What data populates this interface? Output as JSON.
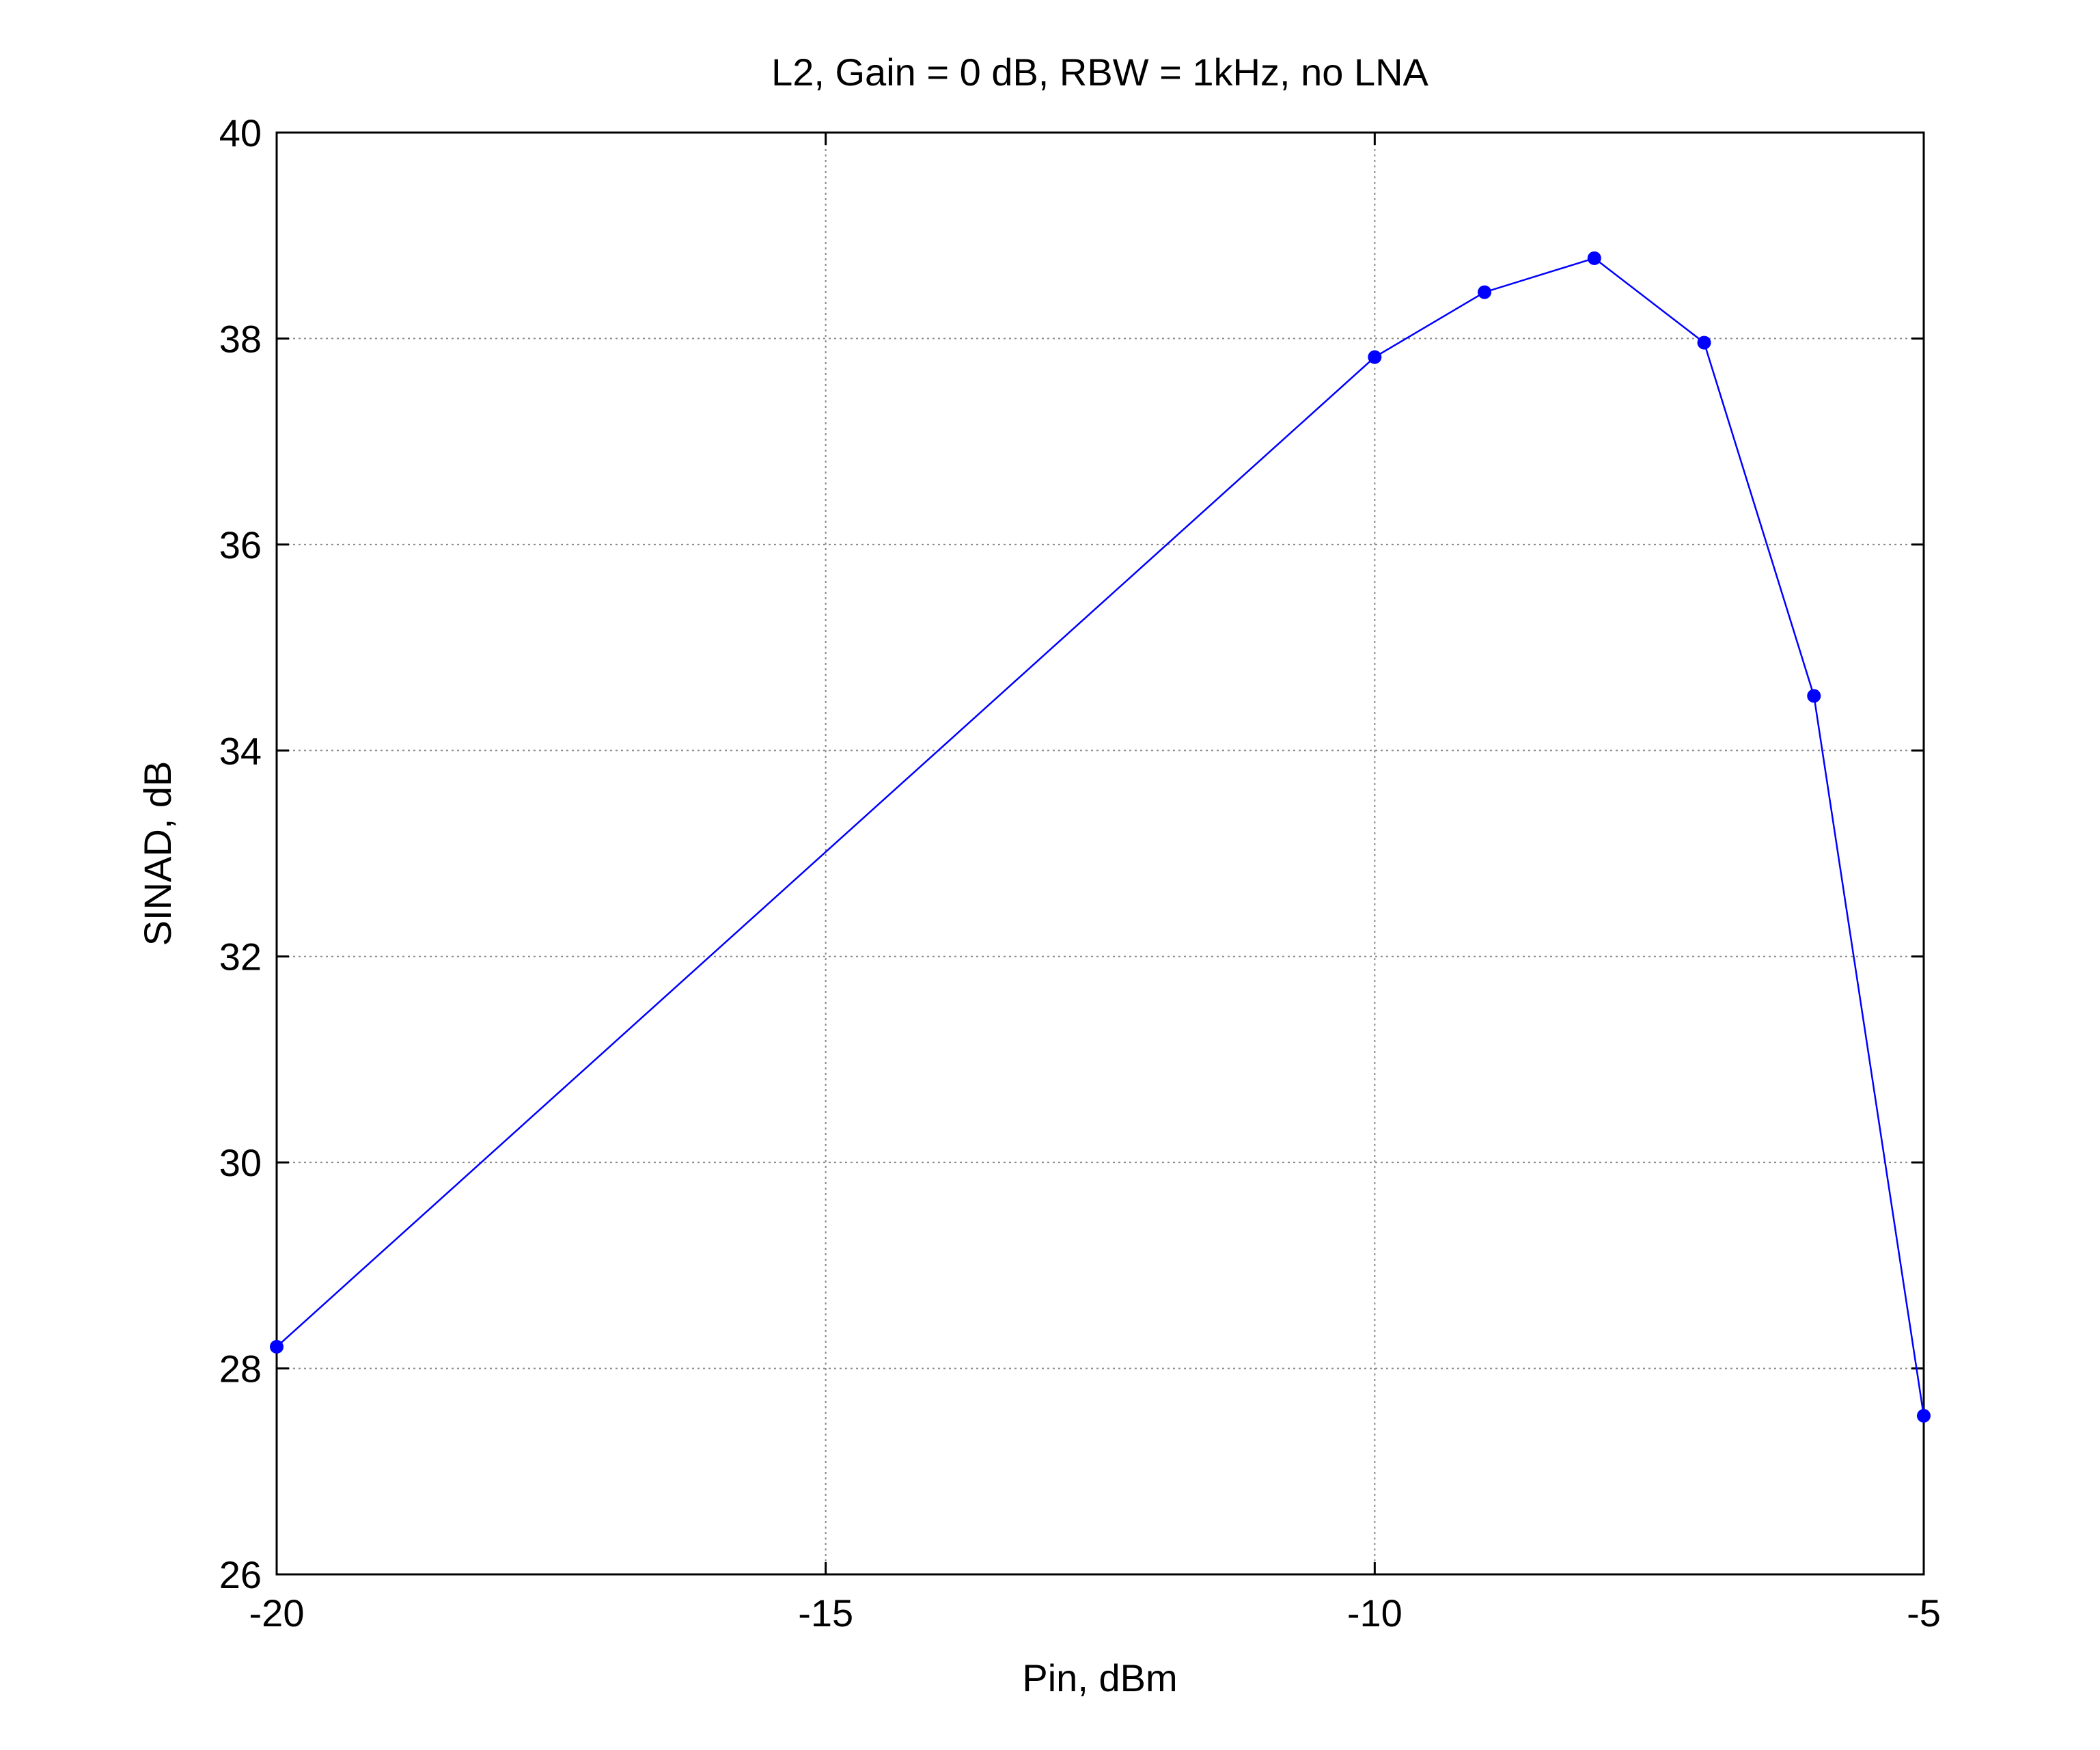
{
  "chart_data": {
    "type": "line",
    "title": "L2, Gain = 0 dB, RBW = 1kHz, no LNA",
    "x_label": "Pin, dBm",
    "y_label": "SINAD, dB",
    "x": [
      -20,
      -10,
      -9,
      -8,
      -7,
      -6,
      -5
    ],
    "series": [
      {
        "color": "#0000ff",
        "values": [
          28.21,
          37.82,
          38.45,
          38.78,
          37.96,
          34.53,
          27.54
        ]
      }
    ],
    "xlim": [
      -20,
      -5
    ],
    "xticks": [
      -20,
      -15,
      -10,
      -5
    ],
    "ylim": [
      26,
      40
    ],
    "yticks": [
      26,
      28,
      30,
      32,
      34,
      36,
      38,
      40
    ],
    "grid": true,
    "markers": true
  }
}
